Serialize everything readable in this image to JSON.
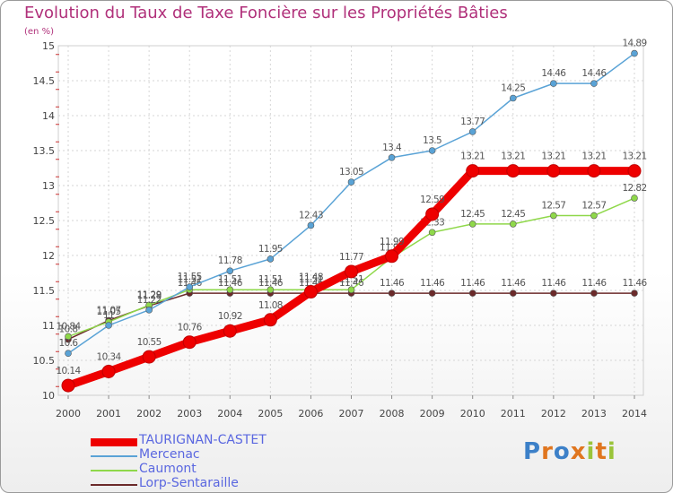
{
  "header": {
    "title": "Evolution du Taux de Taxe Foncière sur les Propriétés Bâties",
    "unit": "(en %)"
  },
  "logo": {
    "text": "Proxiti"
  },
  "chart_data": {
    "type": "line",
    "title": "Evolution du Taux de Taxe Foncière sur les Propriétés Bâties",
    "ylabel": "(en %)",
    "xlabel": "",
    "categories": [
      "2000",
      "2001",
      "2002",
      "2003",
      "2004",
      "2005",
      "2006",
      "2007",
      "2008",
      "2009",
      "2010",
      "2011",
      "2012",
      "2013",
      "2014"
    ],
    "ylim": [
      10,
      15
    ],
    "yticks": [
      "10",
      "10.5",
      "11",
      "11.5",
      "12",
      "12.5",
      "13",
      "13.5",
      "14",
      "14.5",
      "15"
    ],
    "grid": true,
    "legend_position": "bottom-left",
    "series": [
      {
        "name": "Lorp-Sentaraille",
        "color": "#6b2a2a",
        "values": [
          10.8,
          11.07,
          11.28,
          11.46,
          11.46,
          11.46,
          11.46,
          11.46,
          11.46,
          11.46,
          11.46,
          11.46,
          11.46,
          11.46,
          11.46
        ],
        "labels": [
          "10.8",
          "11.07",
          "11.28",
          "11.46",
          "11.46",
          "11.46",
          "11.46",
          "11.46",
          "11.46",
          "11.46",
          "11.46",
          "11.46",
          "11.46",
          "11.46",
          "11.46"
        ]
      },
      {
        "name": "Caumont",
        "color": "#8fd84a",
        "values": [
          10.84,
          11.05,
          11.29,
          11.51,
          11.51,
          11.51,
          11.51,
          11.51,
          11.97,
          12.33,
          12.45,
          12.45,
          12.57,
          12.57,
          12.82
        ],
        "labels": [
          "10.84",
          "11.05",
          "11.29",
          "11.51",
          "11.51",
          "11.51",
          "11.51",
          "11.51",
          "11.97",
          "12.33",
          "12.45",
          "12.45",
          "12.57",
          "12.57",
          "12.82"
        ]
      },
      {
        "name": "Mercenac",
        "color": "#5aa3d6",
        "values": [
          10.6,
          11.0,
          11.22,
          11.55,
          11.78,
          11.95,
          12.43,
          13.05,
          13.4,
          13.5,
          13.77,
          14.25,
          14.46,
          14.46,
          14.89
        ],
        "labels": [
          "10.6",
          "11",
          "11.22",
          "11.55",
          "11.78",
          "11.95",
          "12.43",
          "13.05",
          "13.4",
          "13.5",
          "13.77",
          "14.25",
          "14.46",
          "14.46",
          "14.89"
        ]
      },
      {
        "name": "TAURIGNAN-CASTET",
        "color": "#ee0000",
        "values": [
          10.14,
          10.34,
          10.55,
          10.76,
          10.92,
          11.08,
          11.48,
          11.77,
          11.99,
          12.59,
          13.21,
          13.21,
          13.21,
          13.21,
          13.21
        ],
        "labels": [
          "10.14",
          "10.34",
          "10.55",
          "10.76",
          "10.92",
          "11.08",
          "11.48",
          "11.77",
          "11.99",
          "12.59",
          "13.21",
          "13.21",
          "13.21",
          "13.21",
          "13.21"
        ]
      }
    ]
  }
}
